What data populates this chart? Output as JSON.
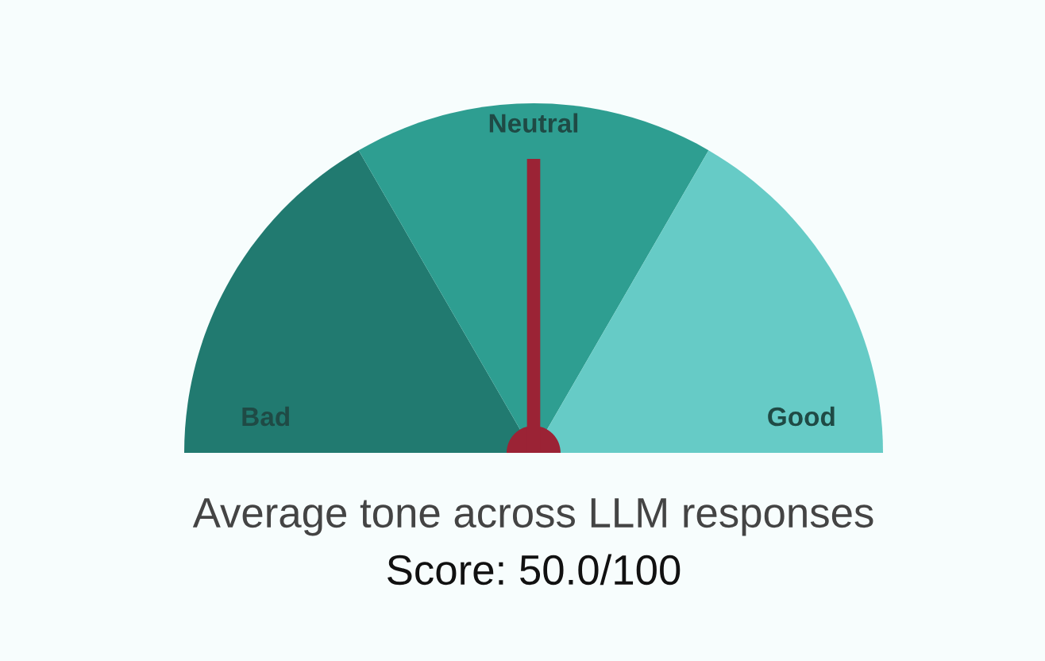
{
  "chart_data": {
    "type": "pie",
    "title": "Average tone across LLM responses",
    "subtitle": "Score: 50.0/100",
    "categories": [
      "Bad",
      "Neutral",
      "Good"
    ],
    "values": [
      33.3,
      33.4,
      33.3
    ],
    "colors": [
      "#217a70",
      "#2e9e91",
      "#66cbc6"
    ],
    "needle": "Neutral"
  }
}
